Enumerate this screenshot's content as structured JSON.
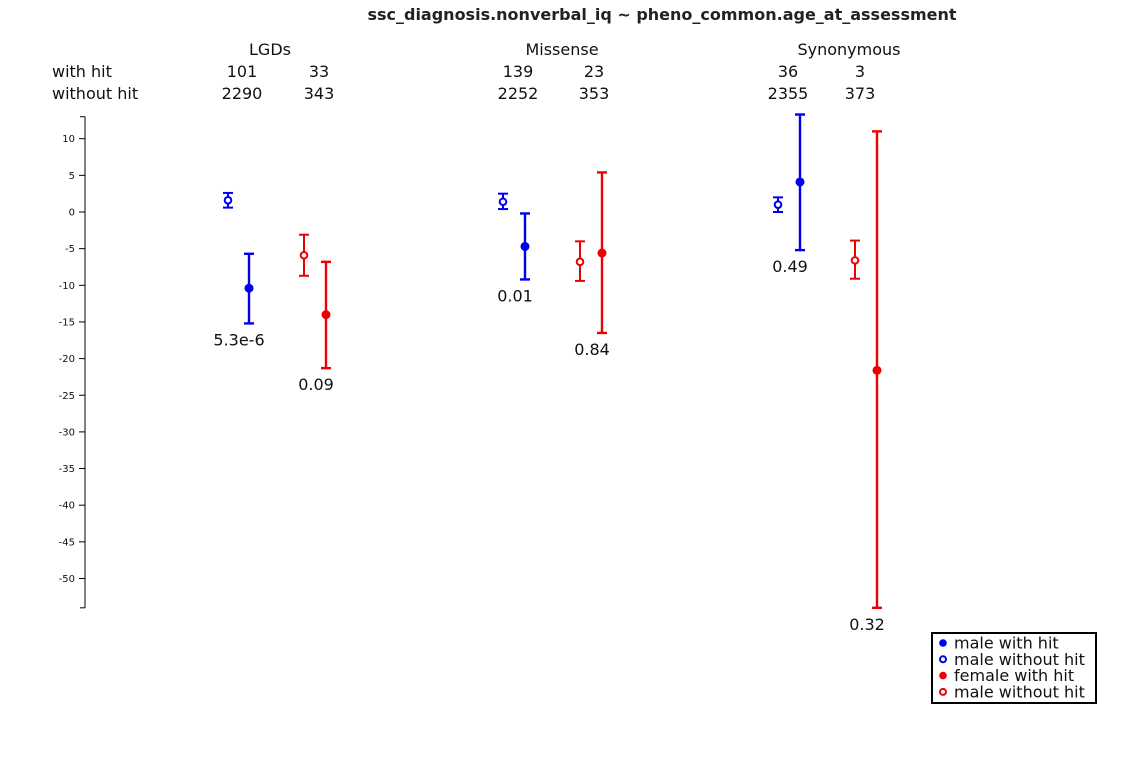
{
  "chart_data": {
    "type": "scatter",
    "title": "ssc_diagnosis.nonverbal_iq ~ pheno_common.age_at_assessment",
    "xlabel": "",
    "ylabel": "",
    "ylim": [
      -54,
      13
    ],
    "yticks": [
      10,
      5,
      0,
      -5,
      -10,
      -15,
      -20,
      -25,
      -30,
      -35,
      -40,
      -45,
      -50
    ],
    "row_labels": {
      "with_hit": "with hit",
      "without_hit": "without hit"
    },
    "groups": [
      {
        "name": "LGDs",
        "counts": {
          "with_hit": [
            "101",
            "33"
          ],
          "without_hit": [
            "2290",
            "343"
          ]
        },
        "male_without_hit": {
          "mean": 1.6,
          "low": 0.6,
          "high": 2.6
        },
        "male_with_hit": {
          "mean": -10.4,
          "low": -15.2,
          "high": -5.7,
          "pvalue": "5.3e-6"
        },
        "female_without_hit": {
          "mean": -5.9,
          "low": -8.7,
          "high": -3.1
        },
        "female_with_hit": {
          "mean": -14.0,
          "low": -21.3,
          "high": -6.8,
          "pvalue": "0.09"
        }
      },
      {
        "name": "Missense",
        "counts": {
          "with_hit": [
            "139",
            "23"
          ],
          "without_hit": [
            "2252",
            "353"
          ]
        },
        "male_without_hit": {
          "mean": 1.4,
          "low": 0.4,
          "high": 2.5
        },
        "male_with_hit": {
          "mean": -4.7,
          "low": -9.2,
          "high": -0.2,
          "pvalue": "0.01"
        },
        "female_without_hit": {
          "mean": -6.8,
          "low": -9.4,
          "high": -4.0
        },
        "female_with_hit": {
          "mean": -5.6,
          "low": -16.5,
          "high": 5.4,
          "pvalue": "0.84"
        }
      },
      {
        "name": "Synonymous",
        "counts": {
          "with_hit": [
            "36",
            "3"
          ],
          "without_hit": [
            "2355",
            "373"
          ]
        },
        "male_without_hit": {
          "mean": 1.0,
          "low": 0.0,
          "high": 2.0
        },
        "male_with_hit": {
          "mean": 4.1,
          "low": -5.2,
          "high": 13.3,
          "pvalue": "0.49"
        },
        "female_without_hit": {
          "mean": -6.6,
          "low": -9.1,
          "high": -3.9
        },
        "female_with_hit": {
          "mean": -21.6,
          "low": -54.0,
          "high": 11.0,
          "pvalue": "0.32"
        }
      }
    ],
    "legend": {
      "placement": "bottom-right",
      "entries": [
        {
          "label": "male with hit",
          "color": "#0000ee",
          "filled": true
        },
        {
          "label": "male without hit",
          "color": "#0000ee",
          "filled": false
        },
        {
          "label": "female with hit",
          "color": "#ee0000",
          "filled": true
        },
        {
          "label": "male without hit",
          "color": "#ee0000",
          "filled": false
        }
      ]
    },
    "colors": {
      "male": "#0000ee",
      "female": "#ee0000",
      "axis": "#000000"
    }
  }
}
